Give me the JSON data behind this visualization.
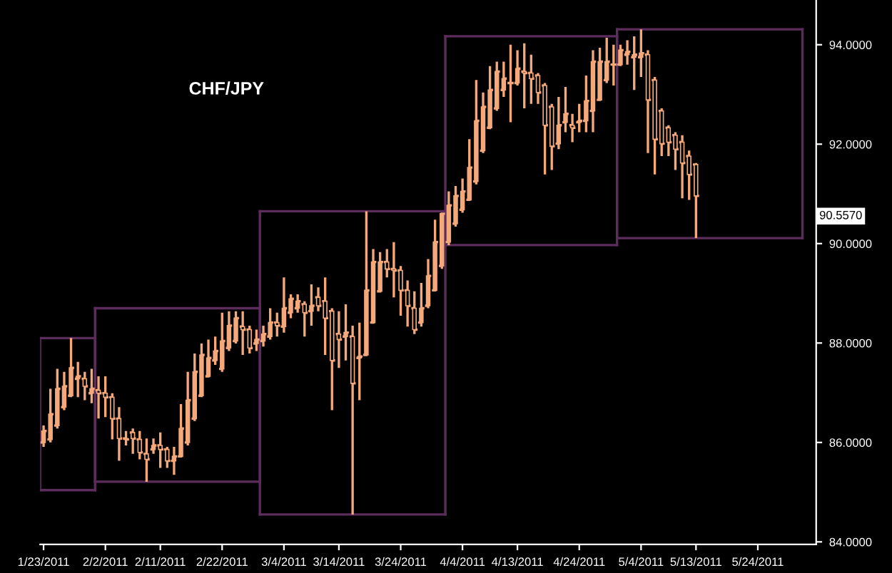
{
  "chart_data": {
    "type": "candlestick",
    "title": "CHF/JPY",
    "color": "#f5a97a",
    "categories": [
      "1/23/2011",
      null,
      null,
      null,
      null,
      null,
      null,
      null,
      null,
      "2/2/2011",
      null,
      null,
      null,
      null,
      null,
      null,
      null,
      "2/11/2011",
      null,
      null,
      null,
      null,
      null,
      null,
      null,
      null,
      "2/22/2011",
      null,
      null,
      null,
      null,
      null,
      null,
      null,
      null,
      "3/4/2011",
      null,
      null,
      null,
      null,
      null,
      null,
      null,
      "3/14/2011",
      null,
      null,
      null,
      null,
      null,
      null,
      null,
      null,
      "3/24/2011",
      null,
      null,
      null,
      null,
      null,
      null,
      null,
      null,
      "4/4/2011",
      null,
      null,
      null,
      null,
      null,
      null,
      null,
      "4/13/2011",
      null,
      null,
      null,
      null,
      null,
      null,
      null,
      null,
      "4/24/2011",
      null,
      null,
      null,
      null,
      null,
      null,
      null,
      null,
      "5/4/2011",
      null,
      null,
      null,
      null,
      null,
      null,
      null,
      "5/13/2011",
      null,
      null,
      null,
      null,
      null,
      null,
      null,
      null,
      "5/24/2011",
      null,
      null,
      null,
      null,
      null,
      null,
      null,
      null
    ],
    "ohlc": [
      [
        86.0,
        86.34,
        85.91,
        86.23
      ],
      [
        86.06,
        87.08,
        86.0,
        86.57
      ],
      [
        86.34,
        87.48,
        86.28,
        87.08
      ],
      [
        86.71,
        87.42,
        86.65,
        87.13
      ],
      [
        86.94,
        88.1,
        86.91,
        87.5
      ],
      [
        87.28,
        87.62,
        86.91,
        87.33
      ],
      [
        87.28,
        87.42,
        86.85,
        87.13
      ],
      [
        86.99,
        87.48,
        86.79,
        87.08
      ],
      [
        87.05,
        87.33,
        86.48,
        86.99
      ],
      [
        86.99,
        87.33,
        86.51,
        86.91
      ],
      [
        86.91,
        86.99,
        86.06,
        86.48
      ],
      [
        86.48,
        86.71,
        85.63,
        86.08
      ],
      [
        86.08,
        86.23,
        85.94,
        86.06
      ],
      [
        86.2,
        86.28,
        85.77,
        86.08
      ],
      [
        86.06,
        86.23,
        85.66,
        85.8
      ],
      [
        85.77,
        86.08,
        85.21,
        85.66
      ],
      [
        85.86,
        86.08,
        85.77,
        85.94
      ],
      [
        85.94,
        86.2,
        85.49,
        85.86
      ],
      [
        85.86,
        85.91,
        85.49,
        85.63
      ],
      [
        85.63,
        85.91,
        85.35,
        85.72
      ],
      [
        85.72,
        86.77,
        85.72,
        86.28
      ],
      [
        86.0,
        87.42,
        85.94,
        86.85
      ],
      [
        86.48,
        87.79,
        86.43,
        87.42
      ],
      [
        86.94,
        87.99,
        86.91,
        87.76
      ],
      [
        87.33,
        88.07,
        87.33,
        87.7
      ],
      [
        87.65,
        88.13,
        87.56,
        87.84
      ],
      [
        87.48,
        88.61,
        87.42,
        88.04
      ],
      [
        87.9,
        88.64,
        87.84,
        88.35
      ],
      [
        88.04,
        88.64,
        87.99,
        88.5
      ],
      [
        88.33,
        88.64,
        87.76,
        88.27
      ],
      [
        88.27,
        88.35,
        87.79,
        87.9
      ],
      [
        87.99,
        88.27,
        87.84,
        88.07
      ],
      [
        88.04,
        88.35,
        87.93,
        88.18
      ],
      [
        88.13,
        88.7,
        88.07,
        88.41
      ],
      [
        88.41,
        88.61,
        88.13,
        88.35
      ],
      [
        88.33,
        89.32,
        88.21,
        88.7
      ],
      [
        88.61,
        88.98,
        88.5,
        88.89
      ],
      [
        88.7,
        88.98,
        88.61,
        88.84
      ],
      [
        88.78,
        88.84,
        88.13,
        88.61
      ],
      [
        88.64,
        89.18,
        88.35,
        88.75
      ],
      [
        88.92,
        89.12,
        88.64,
        88.75
      ],
      [
        88.84,
        89.32,
        87.76,
        88.5
      ],
      [
        88.64,
        88.7,
        86.65,
        87.65
      ],
      [
        88.18,
        88.64,
        87.5,
        88.07
      ],
      [
        88.13,
        88.78,
        87.65,
        88.21
      ],
      [
        88.13,
        88.35,
        84.55,
        87.19
      ],
      [
        87.7,
        88.41,
        86.85,
        87.73
      ],
      [
        87.76,
        90.65,
        87.76,
        89.06
      ],
      [
        88.41,
        89.89,
        88.41,
        89.63
      ],
      [
        89.04,
        89.83,
        89.04,
        89.63
      ],
      [
        89.63,
        89.89,
        89.32,
        89.49
      ],
      [
        89.49,
        90.03,
        88.92,
        89.46
      ],
      [
        89.46,
        89.55,
        88.55,
        89.06
      ],
      [
        89.06,
        89.26,
        88.33,
        88.75
      ],
      [
        88.7,
        89.04,
        88.18,
        88.27
      ],
      [
        88.41,
        89.21,
        88.33,
        88.7
      ],
      [
        88.75,
        89.69,
        88.7,
        89.35
      ],
      [
        89.06,
        90.48,
        89.04,
        90.03
      ],
      [
        89.55,
        90.62,
        89.49,
        90.6
      ],
      [
        90.03,
        91.05,
        89.97,
        90.77
      ],
      [
        90.4,
        91.16,
        90.34,
        90.96
      ],
      [
        90.68,
        91.31,
        90.62,
        91.05
      ],
      [
        90.88,
        92.1,
        90.88,
        91.53
      ],
      [
        91.25,
        93.29,
        91.19,
        92.47
      ],
      [
        91.87,
        93.04,
        91.82,
        92.75
      ],
      [
        92.33,
        93.57,
        92.3,
        93.09
      ],
      [
        92.72,
        93.66,
        92.67,
        93.46
      ],
      [
        93.09,
        93.66,
        92.95,
        93.32
      ],
      [
        93.23,
        94.0,
        92.44,
        93.23
      ],
      [
        93.23,
        93.89,
        93.18,
        93.52
      ],
      [
        93.46,
        94.03,
        92.72,
        93.43
      ],
      [
        93.43,
        93.8,
        92.81,
        93.32
      ],
      [
        93.38,
        93.43,
        92.81,
        93.04
      ],
      [
        93.18,
        93.23,
        91.39,
        92.38
      ],
      [
        92.75,
        92.81,
        91.48,
        91.96
      ],
      [
        92.01,
        92.95,
        91.9,
        92.38
      ],
      [
        92.44,
        93.15,
        92.24,
        92.61
      ],
      [
        92.38,
        92.61,
        92.04,
        92.33
      ],
      [
        92.44,
        92.81,
        92.24,
        92.47
      ],
      [
        92.47,
        93.38,
        92.24,
        92.87
      ],
      [
        92.67,
        93.89,
        92.24,
        93.66
      ],
      [
        92.89,
        93.94,
        92.87,
        93.66
      ],
      [
        93.29,
        94.14,
        93.23,
        93.66
      ],
      [
        93.6,
        94.0,
        93.18,
        93.6
      ],
      [
        93.6,
        94.0,
        93.57,
        93.89
      ],
      [
        93.8,
        94.09,
        93.6,
        93.86
      ],
      [
        93.75,
        94.17,
        93.09,
        93.8
      ],
      [
        93.75,
        94.31,
        93.35,
        93.83
      ],
      [
        93.8,
        93.89,
        91.82,
        92.89
      ],
      [
        93.29,
        93.35,
        91.39,
        92.1
      ],
      [
        92.67,
        92.72,
        91.76,
        92.01
      ],
      [
        92.33,
        92.38,
        91.76,
        92.04
      ],
      [
        92.18,
        92.24,
        91.48,
        91.9
      ],
      [
        92.04,
        92.18,
        90.91,
        91.62
      ],
      [
        91.76,
        91.87,
        90.88,
        91.39
      ],
      [
        91.59,
        91.62,
        90.11,
        90.96
      ],
      null,
      null,
      null,
      null,
      null,
      null,
      null,
      null,
      null,
      null,
      null,
      null,
      null,
      null,
      null,
      null,
      null
    ],
    "series": [
      {
        "type": "line",
        "color": "#5c2d5c",
        "values": [
          88.1,
          88.1,
          88.1,
          88.1,
          88.1,
          88.1,
          88.1,
          88.1,
          null,
          null,
          null,
          null,
          null,
          null,
          null,
          null,
          null,
          null,
          null,
          null,
          null,
          null,
          null,
          null,
          null,
          null,
          null,
          null,
          null,
          null,
          null,
          null,
          null,
          null,
          null,
          null,
          null,
          null,
          null,
          null,
          null,
          null,
          null,
          null,
          null,
          null,
          null,
          null,
          null,
          null,
          null,
          null,
          null,
          null,
          null,
          null,
          null,
          null,
          null,
          null,
          null,
          null,
          null,
          null,
          null,
          null,
          null,
          null,
          null,
          null,
          null,
          null,
          null,
          null,
          null,
          null,
          null,
          null,
          null,
          null,
          null,
          null,
          null,
          null,
          null,
          null,
          null,
          null,
          null,
          null,
          null,
          null,
          null,
          null,
          null,
          null,
          null,
          null,
          null,
          null,
          null,
          null,
          null,
          null,
          null,
          null,
          null,
          null,
          null,
          null,
          null,
          null,
          null
        ]
      },
      {
        "type": "line",
        "color": "#5c2d5c",
        "values": [
          85.04,
          85.04,
          85.04,
          85.04,
          85.04,
          85.04,
          85.04,
          85.04,
          null,
          null,
          null,
          null,
          null,
          null,
          null,
          null,
          null,
          null,
          null,
          null,
          null,
          null,
          null,
          null,
          null,
          null,
          null,
          null,
          null,
          null,
          null,
          null,
          null,
          null,
          null,
          null,
          null,
          null,
          null,
          null,
          null,
          null,
          null,
          null,
          null,
          null,
          null,
          null,
          null,
          null,
          null,
          null,
          null,
          null,
          null,
          null,
          null,
          null,
          null,
          null,
          null,
          null,
          null,
          null,
          null,
          null,
          null,
          null,
          null,
          null,
          null,
          null,
          null,
          null,
          null,
          null,
          null,
          null,
          null,
          null,
          null,
          null,
          null,
          null,
          null,
          null,
          null,
          null,
          null,
          null,
          null,
          null,
          null,
          null,
          null,
          null,
          null,
          null,
          null,
          null,
          null,
          null,
          null,
          null,
          null,
          null,
          null,
          null,
          null,
          null,
          null,
          null,
          null
        ]
      },
      {
        "type": "line",
        "color": "#5c2d5c",
        "values": [
          null,
          null,
          null,
          null,
          null,
          null,
          null,
          null,
          88.7,
          88.7,
          88.7,
          88.7,
          88.7,
          88.7,
          88.7,
          88.7,
          88.7,
          88.7,
          88.7,
          88.7,
          88.7,
          88.7,
          88.7,
          88.7,
          88.7,
          88.7,
          88.7,
          88.7,
          88.7,
          88.7,
          88.7,
          88.7,
          null,
          null,
          null,
          null,
          null,
          null,
          null,
          null,
          null,
          null,
          null,
          null,
          null,
          null,
          null,
          null,
          null,
          null,
          null,
          null,
          null,
          null,
          null,
          null,
          null,
          null,
          null,
          null,
          null,
          null,
          null,
          null,
          null,
          null,
          null,
          null,
          null,
          null,
          null,
          null,
          null,
          null,
          null,
          null,
          null,
          null,
          null,
          null,
          null,
          null,
          null,
          null,
          null,
          null,
          null,
          null,
          null,
          null,
          null,
          null,
          null,
          null,
          null,
          null,
          null,
          null,
          null,
          null,
          null,
          null,
          null,
          null,
          null,
          null,
          null,
          null,
          null,
          null,
          null,
          null,
          null
        ]
      },
      {
        "type": "line",
        "color": "#5c2d5c",
        "values": [
          null,
          null,
          null,
          null,
          null,
          null,
          null,
          null,
          85.21,
          85.21,
          85.21,
          85.21,
          85.21,
          85.21,
          85.21,
          85.21,
          85.21,
          85.21,
          85.21,
          85.21,
          85.21,
          85.21,
          85.21,
          85.21,
          85.21,
          85.21,
          85.21,
          85.21,
          85.21,
          85.21,
          85.21,
          85.21,
          null,
          null,
          null,
          null,
          null,
          null,
          null,
          null,
          null,
          null,
          null,
          null,
          null,
          null,
          null,
          null,
          null,
          null,
          null,
          null,
          null,
          null,
          null,
          null,
          null,
          null,
          null,
          null,
          null,
          null,
          null,
          null,
          null,
          null,
          null,
          null,
          null,
          null,
          null,
          null,
          null,
          null,
          null,
          null,
          null,
          null,
          null,
          null,
          null,
          null,
          null,
          null,
          null,
          null,
          null,
          null,
          null,
          null,
          null,
          null,
          null,
          null,
          null,
          null,
          null,
          null,
          null,
          null,
          null,
          null,
          null,
          null,
          null,
          null,
          null,
          null,
          null,
          null,
          null,
          null,
          null
        ]
      },
      {
        "type": "line",
        "color": "#5c2d5c",
        "values": [
          null,
          null,
          null,
          null,
          null,
          null,
          null,
          null,
          null,
          null,
          null,
          null,
          null,
          null,
          null,
          null,
          null,
          null,
          null,
          null,
          null,
          null,
          null,
          null,
          null,
          null,
          null,
          null,
          null,
          null,
          null,
          null,
          90.65,
          90.65,
          90.65,
          90.65,
          90.65,
          90.65,
          90.65,
          90.65,
          90.65,
          90.65,
          90.65,
          90.65,
          90.65,
          90.65,
          90.65,
          90.65,
          90.65,
          90.65,
          90.65,
          90.65,
          90.65,
          90.65,
          90.65,
          90.65,
          90.65,
          90.65,
          90.65,
          null,
          null,
          null,
          null,
          null,
          null,
          null,
          null,
          null,
          null,
          null,
          null,
          null,
          null,
          null,
          null,
          null,
          null,
          null,
          null,
          null,
          null,
          null,
          null,
          null,
          null,
          null,
          null,
          null,
          null,
          null,
          null,
          null,
          null,
          null,
          null,
          null,
          null,
          null,
          null,
          null,
          null,
          null,
          null,
          null,
          null,
          null,
          null,
          null,
          null,
          null,
          null,
          null,
          null
        ]
      },
      {
        "type": "line",
        "color": "#5c2d5c",
        "values": [
          null,
          null,
          null,
          null,
          null,
          null,
          null,
          null,
          null,
          null,
          null,
          null,
          null,
          null,
          null,
          null,
          null,
          null,
          null,
          null,
          null,
          null,
          null,
          null,
          null,
          null,
          null,
          null,
          null,
          null,
          null,
          null,
          84.55,
          84.55,
          84.55,
          84.55,
          84.55,
          84.55,
          84.55,
          84.55,
          84.55,
          84.55,
          84.55,
          84.55,
          84.55,
          84.55,
          84.55,
          84.55,
          84.55,
          84.55,
          84.55,
          84.55,
          84.55,
          84.55,
          84.55,
          84.55,
          84.55,
          84.55,
          84.55,
          null,
          null,
          null,
          null,
          null,
          null,
          null,
          null,
          null,
          null,
          null,
          null,
          null,
          null,
          null,
          null,
          null,
          null,
          null,
          null,
          null,
          null,
          null,
          null,
          null,
          null,
          null,
          null,
          null,
          null,
          null,
          null,
          null,
          null,
          null,
          null,
          null,
          null,
          null,
          null,
          null,
          null,
          null,
          null,
          null,
          null,
          null,
          null,
          null,
          null,
          null,
          null,
          null,
          null
        ]
      },
      {
        "type": "line",
        "color": "#5c2d5c",
        "values": [
          null,
          null,
          null,
          null,
          null,
          null,
          null,
          null,
          null,
          null,
          null,
          null,
          null,
          null,
          null,
          null,
          null,
          null,
          null,
          null,
          null,
          null,
          null,
          null,
          null,
          null,
          null,
          null,
          null,
          null,
          null,
          null,
          null,
          null,
          null,
          null,
          null,
          null,
          null,
          null,
          null,
          null,
          null,
          null,
          null,
          null,
          null,
          null,
          null,
          null,
          null,
          null,
          null,
          null,
          null,
          null,
          null,
          null,
          null,
          94.17,
          94.17,
          94.17,
          94.17,
          94.17,
          94.17,
          94.17,
          94.17,
          94.17,
          94.17,
          94.17,
          94.17,
          94.17,
          94.17,
          94.17,
          94.17,
          94.17,
          94.17,
          94.17,
          94.17,
          94.17,
          94.17,
          94.17,
          94.17,
          94.17,
          null,
          null,
          null,
          null,
          null,
          null,
          null,
          null,
          null,
          null,
          null,
          null,
          null,
          null,
          null,
          null,
          null,
          null,
          null,
          null,
          null,
          null,
          null,
          null,
          null,
          null,
          null,
          null,
          null
        ]
      },
      {
        "type": "line",
        "color": "#5c2d5c",
        "values": [
          null,
          null,
          null,
          null,
          null,
          null,
          null,
          null,
          null,
          null,
          null,
          null,
          null,
          null,
          null,
          null,
          null,
          null,
          null,
          null,
          null,
          null,
          null,
          null,
          null,
          null,
          null,
          null,
          null,
          null,
          null,
          null,
          null,
          null,
          null,
          null,
          null,
          null,
          null,
          null,
          null,
          null,
          null,
          null,
          null,
          null,
          null,
          null,
          null,
          null,
          null,
          null,
          null,
          null,
          null,
          null,
          null,
          null,
          null,
          89.97,
          89.97,
          89.97,
          89.97,
          89.97,
          89.97,
          89.97,
          89.97,
          89.97,
          89.97,
          89.97,
          89.97,
          89.97,
          89.97,
          89.97,
          89.97,
          89.97,
          89.97,
          89.97,
          89.97,
          89.97,
          89.97,
          89.97,
          89.97,
          89.97,
          null,
          null,
          null,
          null,
          null,
          null,
          null,
          null,
          null,
          null,
          null,
          null,
          null,
          null,
          null,
          null,
          null,
          null,
          null,
          null,
          null,
          null,
          null,
          null,
          null,
          null,
          null,
          null,
          null
        ]
      },
      {
        "type": "line",
        "color": "#5c2d5c",
        "values": [
          null,
          null,
          null,
          null,
          null,
          null,
          null,
          null,
          null,
          null,
          null,
          null,
          null,
          null,
          null,
          null,
          null,
          null,
          null,
          null,
          null,
          null,
          null,
          null,
          null,
          null,
          null,
          null,
          null,
          null,
          null,
          null,
          null,
          null,
          null,
          null,
          null,
          null,
          null,
          null,
          null,
          null,
          null,
          null,
          null,
          null,
          null,
          null,
          null,
          null,
          null,
          null,
          null,
          null,
          null,
          null,
          null,
          null,
          null,
          null,
          null,
          null,
          null,
          null,
          null,
          null,
          null,
          null,
          null,
          null,
          null,
          null,
          null,
          null,
          null,
          null,
          null,
          null,
          null,
          null,
          null,
          null,
          null,
          null,
          94.31,
          94.31,
          94.31,
          94.31,
          94.31,
          94.31,
          94.31,
          94.31,
          94.31,
          94.31,
          94.31,
          94.31,
          94.31,
          94.31,
          94.31,
          94.31,
          94.31,
          94.31,
          94.31,
          94.31,
          94.31,
          94.31,
          94.31,
          94.31,
          94.31,
          94.31,
          94.31,
          null,
          null
        ]
      },
      {
        "type": "line",
        "color": "#5c2d5c",
        "values": [
          null,
          null,
          null,
          null,
          null,
          null,
          null,
          null,
          null,
          null,
          null,
          null,
          null,
          null,
          null,
          null,
          null,
          null,
          null,
          null,
          null,
          null,
          null,
          null,
          null,
          null,
          null,
          null,
          null,
          null,
          null,
          null,
          null,
          null,
          null,
          null,
          null,
          null,
          null,
          null,
          null,
          null,
          null,
          null,
          null,
          null,
          null,
          null,
          null,
          null,
          null,
          null,
          null,
          null,
          null,
          null,
          null,
          null,
          null,
          null,
          null,
          null,
          null,
          null,
          null,
          null,
          null,
          null,
          null,
          null,
          null,
          null,
          null,
          null,
          null,
          null,
          null,
          null,
          null,
          null,
          null,
          null,
          null,
          null,
          90.11,
          90.11,
          90.11,
          90.11,
          90.11,
          90.11,
          90.11,
          90.11,
          90.11,
          90.11,
          90.11,
          90.11,
          90.11,
          90.11,
          90.11,
          90.11,
          90.11,
          90.11,
          90.11,
          90.11,
          90.11,
          90.11,
          90.11,
          90.11,
          90.11,
          90.11,
          90.11,
          null,
          null
        ]
      }
    ],
    "ylim": [
      83.95,
      94.9
    ],
    "yticks": [
      {
        "value": 84,
        "label": "84.0000"
      },
      {
        "value": 86,
        "label": "86.0000"
      },
      {
        "value": 88,
        "label": "88.0000"
      },
      {
        "value": 90,
        "label": "90.0000"
      },
      {
        "value": 92,
        "label": "92.0000"
      },
      {
        "value": 94,
        "label": "94.0000"
      }
    ],
    "annotations": [
      "90.5570"
    ],
    "grid": false,
    "legend": false
  }
}
